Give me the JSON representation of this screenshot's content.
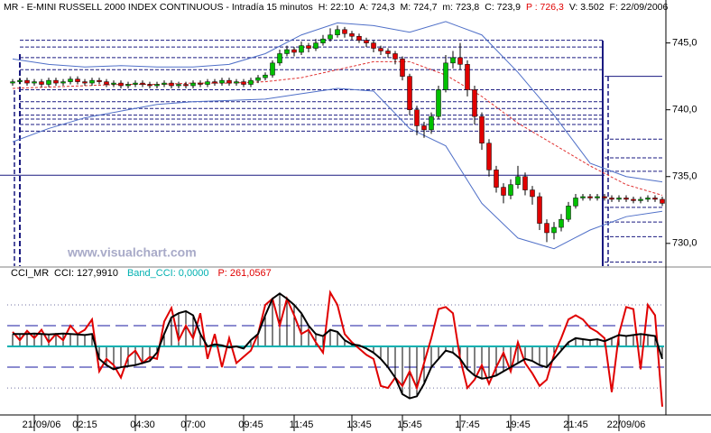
{
  "chart_data": [
    {
      "type": "candlestick",
      "title": "MR - E-MINI RUSSELL 2000 INDEX CONTINUOUS - Intradía 15 minutos",
      "stats": [
        {
          "text": "H: 22:10",
          "color": "#000000"
        },
        {
          "text": "A: 724,3",
          "color": "#000000"
        },
        {
          "text": "M: 724,7",
          "color": "#000000"
        },
        {
          "text": "m: 723,8",
          "color": "#000000"
        },
        {
          "text": "C: 723,9",
          "color": "#000000"
        },
        {
          "text": "P : 726,3",
          "color": "#e00000"
        },
        {
          "text": "V: 3.502",
          "color": "#000000"
        },
        {
          "text": "F: 22/09/2006",
          "color": "#000000"
        }
      ],
      "watermark": "www.visualchart.com",
      "up_color": "#00c000",
      "down_color": "#e00000",
      "ylim": [
        728.3,
        747.0
      ],
      "yticks": [
        {
          "value": 730,
          "label": "730,0"
        },
        {
          "value": 735,
          "label": "735,0"
        },
        {
          "value": 740,
          "label": "740,0"
        },
        {
          "value": 745,
          "label": "745,0"
        }
      ],
      "open": [
        742.0,
        742.1,
        742.2,
        742.0,
        742.1,
        741.9,
        742.2,
        742.0,
        742.1,
        742.3,
        742.1,
        742.0,
        742.2,
        742.1,
        741.9,
        742.0,
        741.8,
        741.9,
        742.0,
        741.9,
        741.8,
        741.9,
        742.0,
        741.8,
        741.9,
        741.8,
        742.0,
        741.9,
        742.1,
        742.0,
        742.2,
        742.0,
        742.1,
        741.9,
        742.2,
        742.4,
        742.6,
        743.5,
        744.2,
        744.5,
        744.3,
        744.8,
        744.6,
        745.0,
        745.3,
        745.6,
        746.0,
        745.7,
        745.5,
        745.2,
        745.0,
        744.6,
        744.4,
        744.2,
        743.8,
        742.5,
        740.0,
        738.8,
        738.5,
        739.5,
        741.5,
        743.5,
        743.9,
        743.4,
        741.5,
        739.5,
        737.5,
        735.5,
        734.2,
        733.6,
        734.4,
        735.0,
        734.0,
        733.5,
        731.5,
        730.8,
        731.2,
        731.8,
        732.8,
        733.4,
        733.5,
        733.4,
        733.5,
        733.4,
        733.3,
        733.4,
        733.3,
        733.2,
        733.3,
        733.4,
        733.3
      ],
      "high": [
        742.3,
        742.4,
        742.4,
        742.3,
        742.3,
        742.4,
        742.4,
        742.3,
        742.5,
        742.5,
        742.3,
        742.4,
        742.4,
        742.3,
        742.2,
        742.2,
        742.1,
        742.2,
        742.2,
        742.1,
        742.1,
        742.2,
        742.2,
        742.1,
        742.1,
        742.2,
        742.2,
        742.3,
        742.3,
        742.4,
        742.4,
        742.3,
        742.3,
        742.4,
        742.6,
        742.8,
        743.7,
        744.5,
        744.8,
        744.7,
        745.1,
        745.0,
        745.3,
        745.6,
        746.1,
        746.3,
        746.2,
        745.9,
        745.7,
        745.4,
        745.2,
        744.8,
        744.6,
        744.4,
        744.0,
        742.7,
        740.3,
        739.1,
        739.8,
        741.8,
        744.1,
        744.4,
        745.0,
        743.7,
        741.8,
        739.8,
        737.8,
        735.8,
        734.5,
        734.8,
        735.8,
        735.3,
        734.3,
        733.8,
        731.8,
        731.6,
        732.2,
        733.1,
        733.7,
        733.7,
        733.7,
        733.7,
        733.7,
        733.6,
        733.6,
        733.6,
        733.5,
        733.5,
        733.6,
        733.6,
        733.5
      ],
      "low": [
        741.8,
        741.9,
        741.8,
        741.8,
        741.7,
        741.7,
        741.8,
        741.8,
        741.9,
        741.9,
        741.8,
        741.8,
        741.9,
        741.7,
        741.7,
        741.6,
        741.6,
        741.7,
        741.7,
        741.6,
        741.6,
        741.7,
        741.6,
        741.6,
        741.6,
        741.6,
        741.7,
        741.7,
        741.8,
        741.8,
        741.8,
        741.8,
        741.7,
        741.7,
        742.0,
        742.2,
        742.4,
        743.3,
        744.0,
        744.0,
        744.1,
        744.3,
        744.4,
        744.8,
        745.1,
        745.4,
        745.4,
        745.2,
        745.0,
        744.7,
        744.3,
        744.1,
        743.9,
        743.4,
        742.2,
        739.6,
        738.1,
        737.9,
        738.2,
        739.3,
        741.3,
        743.1,
        743.0,
        741.0,
        738.9,
        737.0,
        735.0,
        733.8,
        733.0,
        733.3,
        734.1,
        733.6,
        732.9,
        731.0,
        730.1,
        730.3,
        730.9,
        731.6,
        732.6,
        733.2,
        733.2,
        733.2,
        733.2,
        733.1,
        733.1,
        733.1,
        733.0,
        733.0,
        733.1,
        733.1,
        732.8
      ],
      "close": [
        742.1,
        742.2,
        742.0,
        742.1,
        741.9,
        742.2,
        742.0,
        742.1,
        742.3,
        742.1,
        742.0,
        742.2,
        742.1,
        741.9,
        742.0,
        741.8,
        741.9,
        742.0,
        741.9,
        741.8,
        741.9,
        742.0,
        741.8,
        741.9,
        741.8,
        742.0,
        741.9,
        742.1,
        742.0,
        742.2,
        742.0,
        742.1,
        741.9,
        742.2,
        742.4,
        742.6,
        743.5,
        744.2,
        744.5,
        744.3,
        744.8,
        744.6,
        745.0,
        745.3,
        745.6,
        746.0,
        745.7,
        745.5,
        745.2,
        745.0,
        744.6,
        744.4,
        744.2,
        743.8,
        742.5,
        740.0,
        738.8,
        738.5,
        739.5,
        741.5,
        743.5,
        743.9,
        743.4,
        741.5,
        739.5,
        737.5,
        735.5,
        734.2,
        733.6,
        734.4,
        735.0,
        734.0,
        733.5,
        731.5,
        730.8,
        731.2,
        731.8,
        732.8,
        733.4,
        733.5,
        733.4,
        733.5,
        733.4,
        733.3,
        733.4,
        733.3,
        733.2,
        733.3,
        733.4,
        733.3,
        733.0
      ],
      "overlays": [
        {
          "color": "#5070c8",
          "dash": "none",
          "x": [
            0,
            5,
            10,
            15,
            20,
            25,
            30,
            35,
            40,
            45,
            50,
            55,
            60,
            65,
            70,
            75,
            80,
            85,
            90
          ],
          "values": [
            743.8,
            743.4,
            743.2,
            743.3,
            743.2,
            743.2,
            743.4,
            744.2,
            745.6,
            746.5,
            746.3,
            745.8,
            746.6,
            745.6,
            742.8,
            739.6,
            736.0,
            735.0,
            734.6
          ]
        },
        {
          "color": "#5070c8",
          "dash": "none",
          "x": [
            0,
            5,
            10,
            15,
            20,
            25,
            30,
            35,
            40,
            45,
            50,
            55,
            60,
            65,
            70,
            75,
            80,
            85,
            90
          ],
          "values": [
            737.6,
            738.6,
            739.4,
            739.9,
            740.4,
            740.6,
            740.7,
            740.8,
            741.2,
            741.6,
            741.4,
            738.6,
            737.3,
            733.0,
            730.4,
            729.6,
            731.0,
            732.0,
            732.4
          ]
        },
        {
          "color": "#e03030",
          "dash": "3 2",
          "x": [
            0,
            5,
            10,
            15,
            20,
            25,
            30,
            35,
            40,
            45,
            50,
            55,
            60,
            65,
            70,
            75,
            80,
            85,
            90
          ],
          "values": [
            741.6,
            741.7,
            741.8,
            741.9,
            741.9,
            742.0,
            742.0,
            742.1,
            742.4,
            743.0,
            743.6,
            743.6,
            742.6,
            741.0,
            739.0,
            737.4,
            735.8,
            734.4,
            733.6
          ]
        }
      ],
      "levels": [
        {
          "value": 745.2,
          "from": 1,
          "to": 82,
          "style": "dashed"
        },
        {
          "value": 744.7,
          "from": 1,
          "to": 82,
          "style": "dashed"
        },
        {
          "value": 743.9,
          "from": 1,
          "to": 82,
          "style": "dashed"
        },
        {
          "value": 743.0,
          "from": 1,
          "to": 82,
          "style": "dashed"
        },
        {
          "value": 741.5,
          "from": 1,
          "to": 82,
          "style": "dashed"
        },
        {
          "value": 740.6,
          "from": 1,
          "to": 82,
          "style": "dashed"
        },
        {
          "value": 740.1,
          "from": 1,
          "to": 82,
          "style": "dashed"
        },
        {
          "value": 739.6,
          "from": 1,
          "to": 82,
          "style": "dashed"
        },
        {
          "value": 739.3,
          "from": 1,
          "to": 82,
          "style": "dashed"
        },
        {
          "value": 738.9,
          "from": 1,
          "to": 82,
          "style": "dashed"
        },
        {
          "value": 738.4,
          "from": 1,
          "to": 82,
          "style": "dashed"
        },
        {
          "value": 735.1,
          "from": 0,
          "to": 82,
          "style": "solid"
        },
        {
          "value": 742.5,
          "from": 82,
          "to": 90,
          "style": "solid"
        },
        {
          "value": 737.8,
          "from": 82,
          "to": 90,
          "style": "dashed"
        },
        {
          "value": 736.4,
          "from": 82,
          "to": 90,
          "style": "dashed"
        },
        {
          "value": 735.4,
          "from": 82,
          "to": 90,
          "style": "dashed"
        },
        {
          "value": 732.7,
          "from": 82,
          "to": 90,
          "style": "dashed"
        },
        {
          "value": 731.6,
          "from": 82,
          "to": 90,
          "style": "dashed"
        },
        {
          "value": 730.5,
          "from": 82,
          "to": 90,
          "style": "dashed"
        },
        {
          "value": 728.6,
          "from": 82,
          "to": 90,
          "style": "dashed"
        }
      ]
    },
    {
      "type": "cci",
      "title": "CCI_MR",
      "ylim": [
        -330,
        313
      ],
      "band_name": "Band_CCI: 0,0000",
      "band_value": 0,
      "band_color": "#00b0b0",
      "levels": [
        200,
        100,
        -100,
        -200
      ],
      "categories": [
        null,
        null,
        null,
        null,
        "21/09/06",
        null,
        null,
        null,
        null,
        null,
        "02:15",
        null,
        null,
        null,
        null,
        null,
        null,
        null,
        "04:30",
        null,
        null,
        null,
        null,
        null,
        null,
        "07:00",
        null,
        null,
        null,
        null,
        null,
        null,
        null,
        "09:45",
        null,
        null,
        null,
        null,
        null,
        null,
        "11:45",
        null,
        null,
        null,
        null,
        null,
        null,
        null,
        "13:45",
        null,
        null,
        null,
        null,
        null,
        null,
        "15:45",
        null,
        null,
        null,
        null,
        null,
        null,
        null,
        "17:45",
        null,
        null,
        null,
        null,
        null,
        null,
        "19:45",
        null,
        null,
        null,
        null,
        null,
        null,
        null,
        "21:45",
        null,
        null,
        null,
        null,
        null,
        null,
        "22/09/06",
        null,
        null,
        null,
        null,
        null
      ],
      "series": [
        {
          "name": "CCI: 127,9910",
          "color": "#000000",
          "values": [
            60,
            60,
            60,
            62,
            60,
            58,
            60,
            62,
            60,
            58,
            55,
            60,
            -60,
            -90,
            -110,
            -100,
            -95,
            -90,
            -80,
            -70,
            -30,
            60,
            140,
            160,
            170,
            150,
            60,
            0,
            10,
            5,
            -5,
            0,
            -10,
            30,
            60,
            150,
            230,
            255,
            230,
            200,
            160,
            100,
            60,
            50,
            80,
            70,
            30,
            10,
            5,
            -10,
            -30,
            -60,
            -100,
            -150,
            -230,
            -250,
            -240,
            -180,
            -100,
            -60,
            -20,
            -30,
            -60,
            -110,
            -140,
            -155,
            -150,
            -140,
            -120,
            -100,
            -80,
            -60,
            -70,
            -90,
            -100,
            -60,
            -20,
            20,
            40,
            35,
            30,
            35,
            25,
            40,
            55,
            50,
            55,
            60,
            55,
            50,
            -60
          ]
        },
        {
          "name": "P: 261,0567",
          "color": "#e00000",
          "values": [
            70,
            30,
            75,
            40,
            80,
            20,
            60,
            30,
            100,
            60,
            80,
            130,
            -120,
            -60,
            -90,
            -150,
            -50,
            -20,
            -80,
            -50,
            -60,
            120,
            185,
            30,
            100,
            40,
            160,
            -60,
            60,
            -100,
            40,
            -80,
            -50,
            -20,
            60,
            200,
            230,
            100,
            230,
            150,
            60,
            80,
            20,
            -30,
            260,
            200,
            60,
            20,
            -10,
            -40,
            -60,
            -190,
            -200,
            -150,
            -190,
            -120,
            -200,
            -80,
            40,
            180,
            190,
            160,
            -60,
            -200,
            -160,
            -90,
            -180,
            -100,
            -30,
            -120,
            20,
            -80,
            -130,
            -190,
            -160,
            -40,
            40,
            130,
            150,
            130,
            90,
            70,
            40,
            -220,
            60,
            190,
            180,
            -110,
            200,
            150,
            -290
          ]
        }
      ]
    }
  ]
}
